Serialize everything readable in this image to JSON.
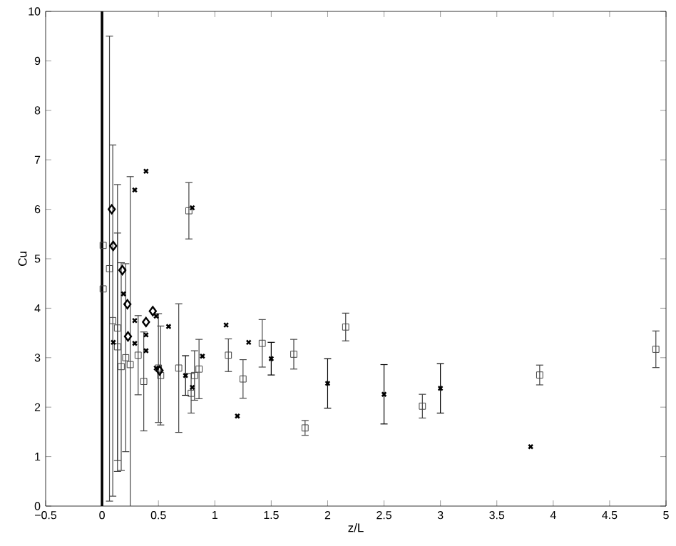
{
  "chart_data": {
    "type": "scatter",
    "xlabel": "z/L",
    "ylabel": "Cu",
    "xlim": [
      -0.5,
      5
    ],
    "ylim": [
      0,
      10
    ],
    "xticks": [
      {
        "value": -0.5,
        "label": "−0.5"
      },
      0,
      0.5,
      1,
      1.5,
      2,
      2.5,
      3,
      3.5,
      4,
      4.5,
      5
    ],
    "yticks": [
      0,
      1,
      2,
      3,
      4,
      5,
      6,
      7,
      8,
      9,
      10
    ],
    "grid": false,
    "ref_lines": [
      {
        "axis": "x",
        "value": 0,
        "color": "#000000"
      }
    ],
    "series": [
      {
        "marker": "square",
        "color": "#444444",
        "x": [
          0.01,
          0.01,
          0.066,
          0.095,
          0.137,
          0.137,
          0.17,
          0.21,
          0.25,
          0.32,
          0.37,
          0.5,
          0.52,
          0.68,
          0.77,
          0.79,
          0.82,
          0.86,
          1.12,
          1.25,
          1.42,
          1.7,
          1.8,
          2.16,
          2.84,
          3.88,
          4.91
        ],
        "values": [
          5.27,
          4.39,
          4.8,
          3.75,
          3.6,
          3.22,
          2.82,
          3.0,
          2.86,
          3.05,
          2.52,
          2.79,
          2.64,
          2.79,
          5.97,
          2.28,
          2.64,
          2.77,
          3.05,
          2.57,
          3.29,
          3.07,
          1.58,
          3.62,
          2.02,
          2.65,
          3.17
        ],
        "errors": [
          null,
          null,
          4.7,
          3.55,
          2.9,
          2.3,
          2.1,
          1.9,
          3.8,
          0.8,
          1.0,
          1.1,
          1.0,
          1.3,
          0.57,
          0.4,
          0.5,
          0.6,
          0.33,
          0.39,
          0.48,
          0.3,
          0.15,
          0.28,
          0.24,
          0.2,
          0.37
        ]
      },
      {
        "marker": "cross",
        "color": "#000000",
        "x": [
          0.74,
          1.5,
          2.0,
          2.5,
          3.0
        ],
        "values": [
          2.64,
          2.98,
          2.48,
          2.26,
          2.38
        ],
        "errors": [
          0.4,
          0.33,
          0.5,
          0.6,
          0.5
        ]
      },
      {
        "marker": "cross",
        "color": "#000000",
        "x": [
          0.39,
          0.29,
          0.8,
          0.19,
          0.29,
          0.48,
          0.59,
          0.39,
          0.1,
          0.29,
          0.39,
          0.48,
          0.89,
          1.1,
          1.3,
          1.2,
          0.8,
          3.8
        ],
        "values": [
          6.77,
          6.39,
          6.03,
          4.29,
          3.75,
          3.84,
          3.63,
          3.46,
          3.31,
          3.29,
          3.14,
          2.79,
          3.03,
          3.66,
          3.31,
          1.82,
          2.4,
          1.2
        ]
      },
      {
        "marker": "diamond",
        "color": "#000000",
        "x": [
          0.086,
          0.099,
          0.18,
          0.225,
          0.23,
          0.39,
          0.45,
          0.51
        ],
        "values": [
          6.0,
          5.26,
          4.77,
          4.08,
          3.43,
          3.72,
          3.94,
          2.74
        ]
      }
    ]
  }
}
